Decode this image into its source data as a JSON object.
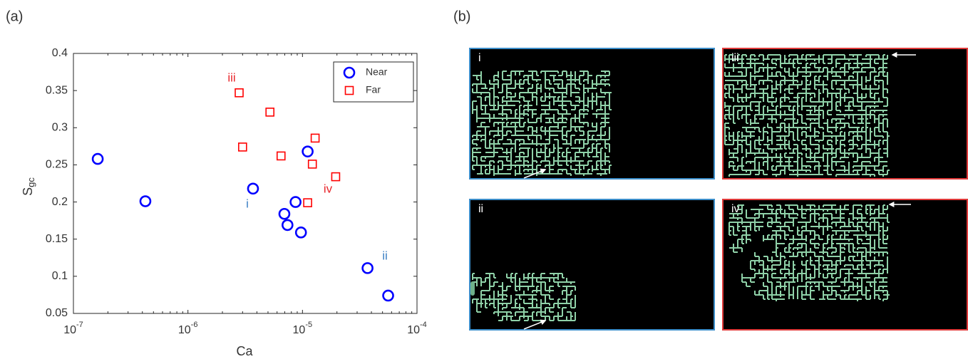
{
  "panel_labels": [
    "(a)",
    "(b)"
  ],
  "chart_data": {
    "type": "scatter",
    "xlabel": "Ca",
    "ylabel": "S",
    "ylabel_subscript": "gc",
    "xscale": "log",
    "xlim": [
      1e-07,
      0.0001
    ],
    "ylim": [
      0.05,
      0.4
    ],
    "xticks": [
      {
        "value": 1e-07,
        "label": "10",
        "exponent": "-7"
      },
      {
        "value": 1e-06,
        "label": "10",
        "exponent": "-6"
      },
      {
        "value": 1e-05,
        "label": "10",
        "exponent": "-5"
      },
      {
        "value": 0.0001,
        "label": "10",
        "exponent": "-4"
      }
    ],
    "yticks": [
      0.05,
      0.1,
      0.15,
      0.2,
      0.25,
      0.3,
      0.35,
      0.4
    ],
    "legend": "upper right",
    "series": [
      {
        "name": "Near",
        "color": "#0000ff",
        "marker": "circle",
        "x": [
          1.63e-07,
          4.25e-07,
          3.7e-06,
          6.95e-06,
          7.4e-06,
          8.7e-06,
          9.7e-06,
          1.11e-05,
          3.7e-05,
          5.6e-05
        ],
        "y": [
          0.258,
          0.201,
          0.218,
          0.184,
          0.169,
          0.2,
          0.159,
          0.268,
          0.111,
          0.074
        ]
      },
      {
        "name": "Far",
        "color": "#ff0000",
        "marker": "square",
        "x": [
          2.8e-06,
          3e-06,
          5.2e-06,
          6.5e-06,
          1.11e-05,
          1.22e-05,
          1.29e-05,
          1.95e-05
        ],
        "y": [
          0.347,
          0.274,
          0.321,
          0.262,
          0.199,
          0.251,
          0.286,
          0.234
        ]
      }
    ],
    "annotations": [
      {
        "text": "iii",
        "color": "#e8262b"
      },
      {
        "text": "iv",
        "color": "#e8262b"
      },
      {
        "text": "i",
        "color": "#3b7fc4"
      },
      {
        "text": "ii",
        "color": "#3b7fc4"
      }
    ]
  },
  "images": [
    {
      "label": "i",
      "border": "#3b8dc9"
    },
    {
      "label": "iii",
      "border": "#e03a3a"
    },
    {
      "label": "ii",
      "border": "#3b8dc9"
    },
    {
      "label": "iv",
      "border": "#e03a3a"
    }
  ]
}
